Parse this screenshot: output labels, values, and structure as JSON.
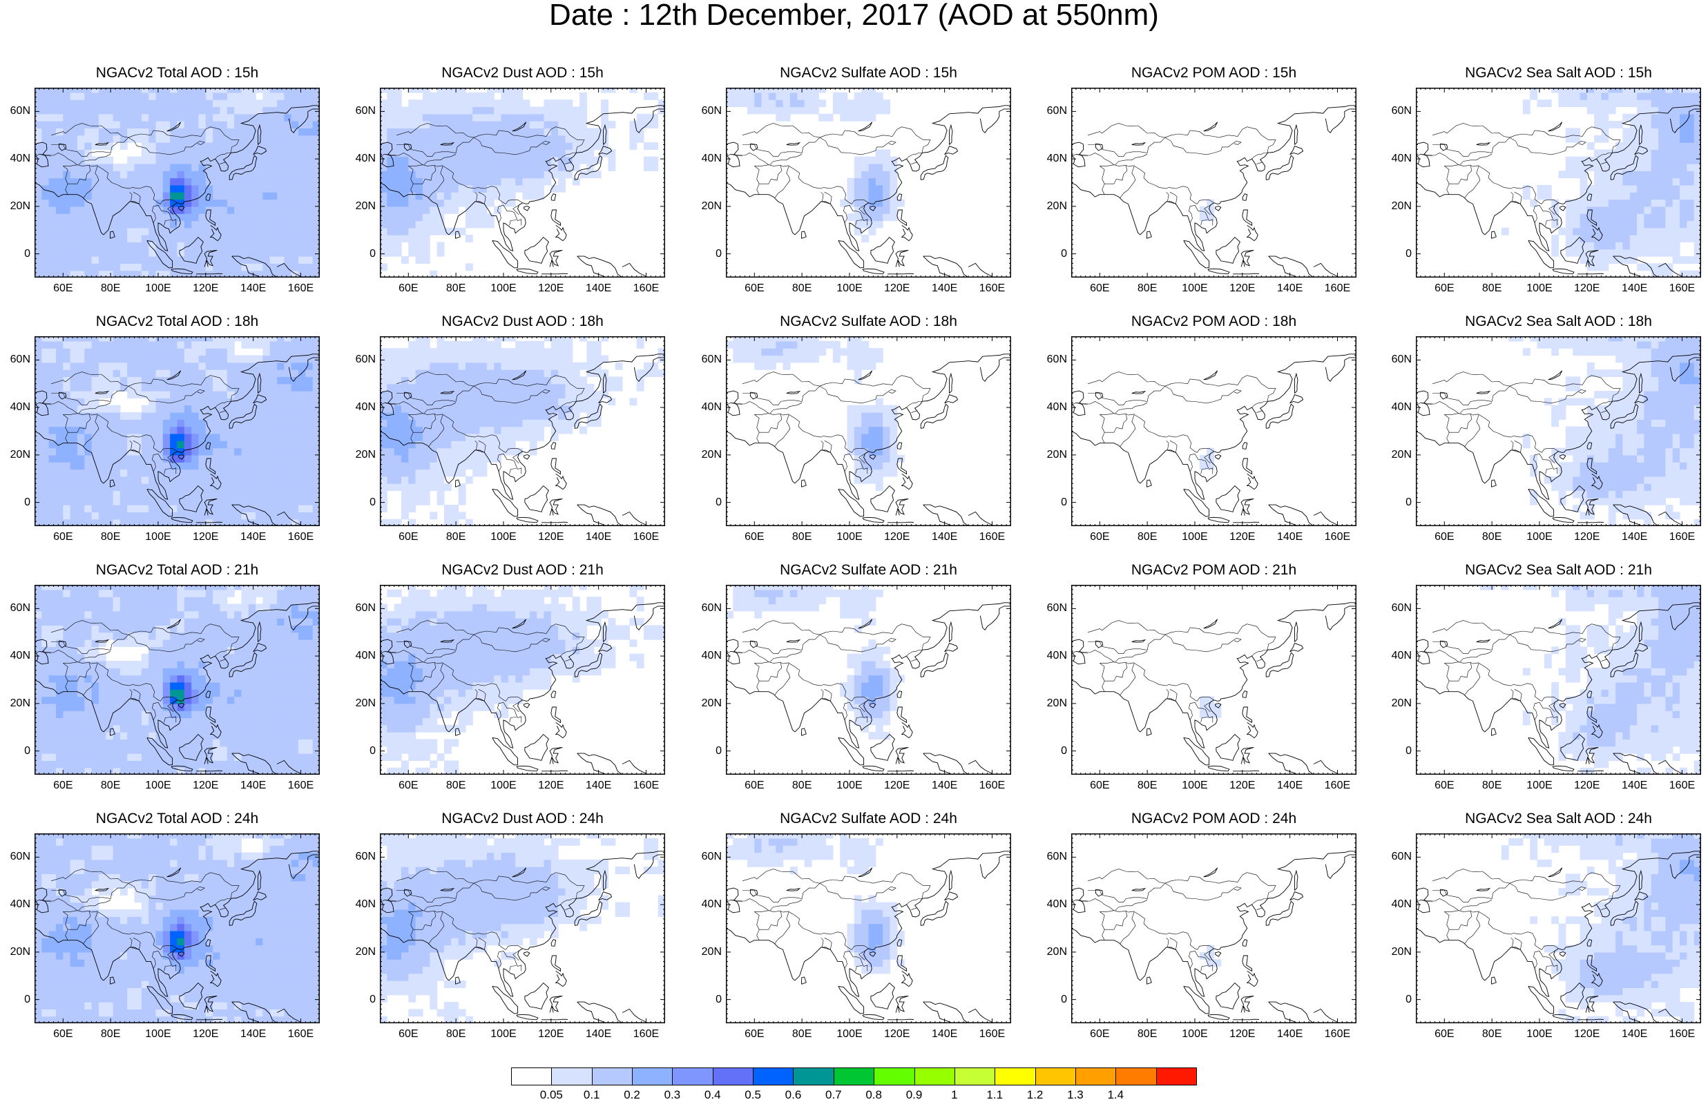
{
  "main_title": "Date : 12th December, 2017 (AOD at 550nm)",
  "species": [
    "Total",
    "Dust",
    "Sulfate",
    "POM",
    "Sea Salt"
  ],
  "hours": [
    "15h",
    "18h",
    "21h",
    "24h"
  ],
  "panel_titles": [
    [
      "NGACv2 Total AOD : 15h",
      "NGACv2 Dust AOD : 15h",
      "NGACv2 Sulfate AOD : 15h",
      "NGACv2 POM AOD : 15h",
      "NGACv2 Sea Salt AOD : 15h"
    ],
    [
      "NGACv2 Total AOD : 18h",
      "NGACv2 Dust AOD : 18h",
      "NGACv2 Sulfate AOD : 18h",
      "NGACv2 POM AOD : 18h",
      "NGACv2 Sea Salt AOD : 18h"
    ],
    [
      "NGACv2 Total AOD : 21h",
      "NGACv2 Dust AOD : 21h",
      "NGACv2 Sulfate AOD : 21h",
      "NGACv2 POM AOD : 21h",
      "NGACv2 Sea Salt AOD : 21h"
    ],
    [
      "NGACv2 Total AOD : 24h",
      "NGACv2 Dust AOD : 24h",
      "NGACv2 Sulfate AOD : 24h",
      "NGACv2 POM AOD : 24h",
      "NGACv2 Sea Salt  AOD : 24h"
    ]
  ],
  "lat_ticks": [
    "60N",
    "40N",
    "20N",
    "0"
  ],
  "lon_ticks": [
    "60E",
    "80E",
    "100E",
    "120E",
    "140E",
    "160E"
  ],
  "map_extent": {
    "lon_min": 48,
    "lon_max": 168,
    "lat_min": -10,
    "lat_max": 70
  },
  "colorbar": {
    "colors": [
      "#ffffff",
      "#d6e2ff",
      "#b5c9ff",
      "#8eb2ff",
      "#7f96ff",
      "#6370f8",
      "#0063ff",
      "#009696",
      "#00c633",
      "#63ff00",
      "#96ff00",
      "#c6ff33",
      "#ffff00",
      "#ffc600",
      "#ffa000",
      "#ff7c00",
      "#ff1900"
    ],
    "labels": [
      "0.05",
      "0.1",
      "0.2",
      "0.3",
      "0.4",
      "0.5",
      "0.6",
      "0.7",
      "0.8",
      "0.9",
      "1",
      "1.1",
      "1.2",
      "1.3",
      "1.4"
    ]
  }
}
